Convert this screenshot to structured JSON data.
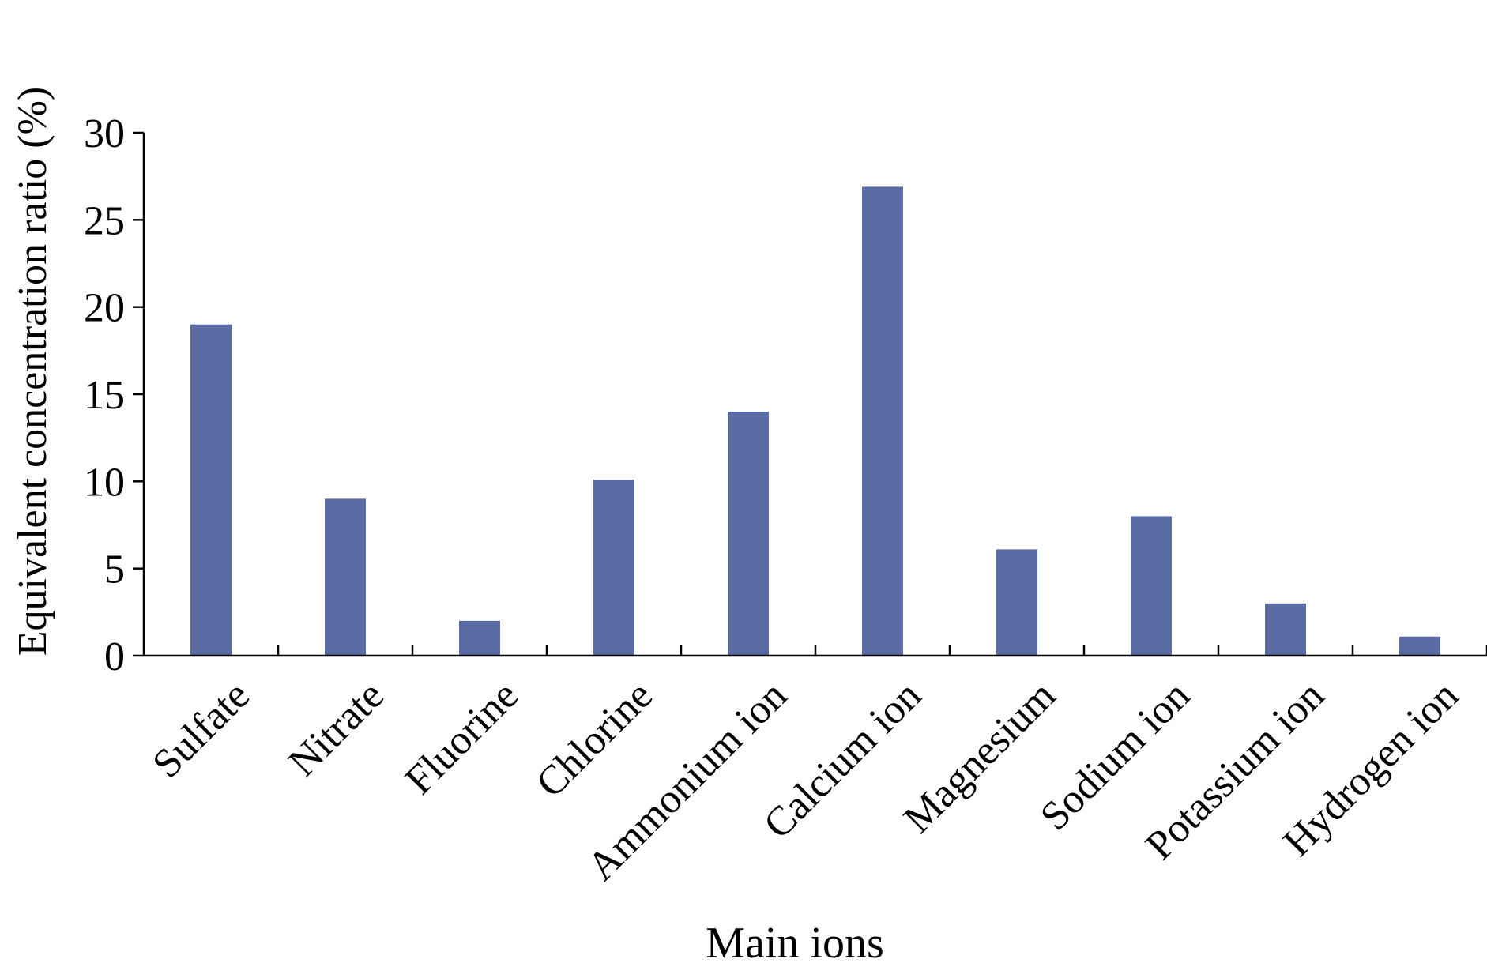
{
  "chart_data": {
    "type": "bar",
    "title": "",
    "xlabel": "Main ions",
    "ylabel": "Equivalent concentration ratio (%)",
    "categories": [
      "Sulfate",
      "Nitrate",
      "Fluorine",
      "Chlorine",
      "Ammonium ion",
      "Calcium ion",
      "Magnesium",
      "Sodium ion",
      "Potassium ion",
      "Hydrogen ion"
    ],
    "values": [
      19,
      9,
      2,
      10.1,
      14,
      26.9,
      6.1,
      8,
      3,
      1.1
    ],
    "ylim": [
      0,
      30
    ],
    "yticks": [
      0,
      5,
      10,
      15,
      20,
      25,
      30
    ],
    "grid": false,
    "legend": "none",
    "bar_color": "#5b6ca5",
    "axis_color": "#000000"
  }
}
